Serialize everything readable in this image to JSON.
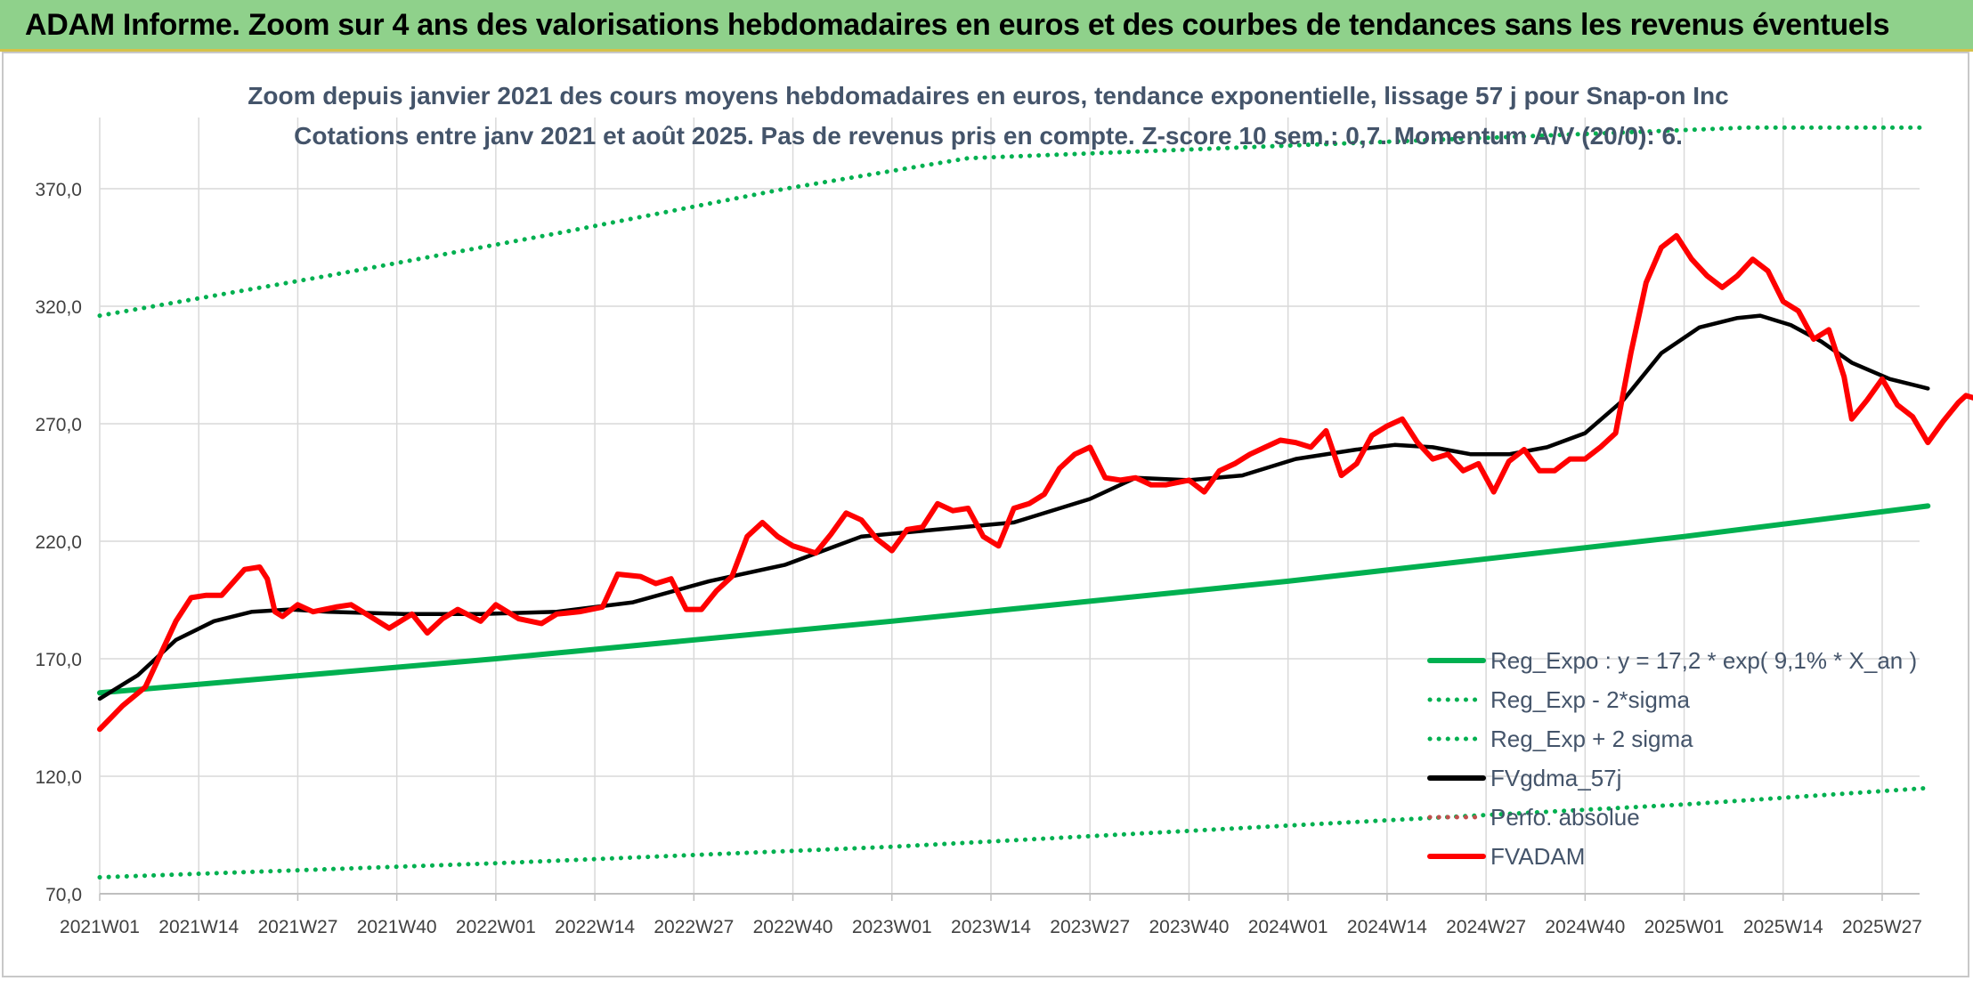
{
  "banner": {
    "title": "ADAM Informe. Zoom sur 4 ans des valorisations hebdomadaires en euros et des courbes de tendances sans les revenus éventuels"
  },
  "colors": {
    "banner_bg": "#8fd18b",
    "reg_expo": "#00b050",
    "fvgdma": "#000000",
    "fvadam": "#ff0000",
    "perfo": "#c0504d",
    "grid": "#d9d9d9"
  },
  "chart_data": {
    "type": "line",
    "title": "Zoom depuis janvier 2021 des cours moyens hebdomadaires en euros, tendance exponentielle, lissage 57 j pour Snap-on Inc",
    "subtitle": "Cotations entre janv 2021 et août 2025. Pas de revenus pris en compte. Z-score 10 sem.: 0,7. Momentum A/V (20/0): 6.",
    "xlabel": "",
    "ylabel": "",
    "ylim": [
      70,
      390
    ],
    "yticks": [
      "70,0",
      "120,0",
      "170,0",
      "220,0",
      "270,0",
      "320,0",
      "370,0"
    ],
    "xtick_labels": [
      "2021W01",
      "2021W14",
      "2021W27",
      "2021W40",
      "2022W01",
      "2022W14",
      "2022W27",
      "2022W40",
      "2023W01",
      "2023W14",
      "2023W27",
      "2023W40",
      "2024W01",
      "2024W14",
      "2024W27",
      "2024W40",
      "2025W01",
      "2025W14",
      "2025W27"
    ],
    "x_range_weeks": [
      0,
      240
    ],
    "grid": true,
    "legend_position": "bottom-right",
    "series": [
      {
        "name": "Reg_Expo : y = 17,2 * exp( 9,1% *  X_an )",
        "style": "solid",
        "color": "#00b050",
        "points": [
          [
            0,
            155.5
          ],
          [
            52,
            170
          ],
          [
            104,
            186
          ],
          [
            156,
            203
          ],
          [
            208,
            222
          ],
          [
            240,
            235
          ]
        ]
      },
      {
        "name": "Reg_Exp - 2*sigma",
        "style": "dotted",
        "color": "#00b050",
        "points": [
          [
            0,
            77
          ],
          [
            52,
            83
          ],
          [
            104,
            90
          ],
          [
            156,
            99
          ],
          [
            208,
            108
          ],
          [
            240,
            115
          ]
        ]
      },
      {
        "name": "Reg_Exp + 2 sigma",
        "style": "dotted",
        "color": "#00b050",
        "points": [
          [
            0,
            316
          ],
          [
            30,
            333
          ],
          [
            60,
            351
          ],
          [
            90,
            370
          ],
          [
            114,
            383
          ],
          [
            216,
            396
          ],
          [
            240,
            396
          ]
        ]
      },
      {
        "name": "FVgdma_57j",
        "style": "solid",
        "color": "#000000",
        "points": [
          [
            0,
            153
          ],
          [
            5,
            163
          ],
          [
            10,
            178
          ],
          [
            15,
            186
          ],
          [
            20,
            190
          ],
          [
            25,
            191
          ],
          [
            30,
            190
          ],
          [
            40,
            189
          ],
          [
            50,
            189
          ],
          [
            60,
            190
          ],
          [
            70,
            194
          ],
          [
            80,
            203
          ],
          [
            90,
            210
          ],
          [
            100,
            222
          ],
          [
            110,
            225
          ],
          [
            120,
            228
          ],
          [
            130,
            238
          ],
          [
            136,
            247
          ],
          [
            143,
            246
          ],
          [
            150,
            248
          ],
          [
            157,
            255
          ],
          [
            165,
            259
          ],
          [
            170,
            261
          ],
          [
            175,
            260
          ],
          [
            180,
            257
          ],
          [
            185,
            257
          ],
          [
            190,
            260
          ],
          [
            195,
            266
          ],
          [
            200,
            280
          ],
          [
            205,
            300
          ],
          [
            210,
            311
          ],
          [
            215,
            315
          ],
          [
            218,
            316
          ],
          [
            222,
            312
          ],
          [
            226,
            305
          ],
          [
            230,
            296
          ],
          [
            235,
            289
          ],
          [
            240,
            285
          ]
        ]
      },
      {
        "name": "Perfo. absolue",
        "style": "dotted",
        "color": "#c0504d",
        "points": []
      },
      {
        "name": "FVADAM",
        "style": "solid",
        "color": "#ff0000",
        "points": [
          [
            0,
            140
          ],
          [
            3,
            150
          ],
          [
            6,
            158
          ],
          [
            8,
            172
          ],
          [
            10,
            186
          ],
          [
            12,
            196
          ],
          [
            14,
            197
          ],
          [
            16,
            197
          ],
          [
            19,
            208
          ],
          [
            21,
            209
          ],
          [
            22,
            204
          ],
          [
            23,
            190
          ],
          [
            24,
            188
          ],
          [
            26,
            193
          ],
          [
            28,
            190
          ],
          [
            31,
            192
          ],
          [
            33,
            193
          ],
          [
            36,
            187
          ],
          [
            38,
            183
          ],
          [
            41,
            189
          ],
          [
            43,
            181
          ],
          [
            45,
            187
          ],
          [
            47,
            191
          ],
          [
            50,
            186
          ],
          [
            52,
            193
          ],
          [
            55,
            187
          ],
          [
            58,
            185
          ],
          [
            60,
            189
          ],
          [
            63,
            190
          ],
          [
            66,
            192
          ],
          [
            68,
            206
          ],
          [
            71,
            205
          ],
          [
            73,
            202
          ],
          [
            75,
            204
          ],
          [
            77,
            191
          ],
          [
            79,
            191
          ],
          [
            81,
            199
          ],
          [
            83,
            205
          ],
          [
            85,
            222
          ],
          [
            87,
            228
          ],
          [
            89,
            222
          ],
          [
            91,
            218
          ],
          [
            94,
            215
          ],
          [
            96,
            223
          ],
          [
            98,
            232
          ],
          [
            100,
            229
          ],
          [
            102,
            221
          ],
          [
            104,
            216
          ],
          [
            106,
            225
          ],
          [
            108,
            226
          ],
          [
            110,
            236
          ],
          [
            112,
            233
          ],
          [
            114,
            234
          ],
          [
            116,
            222
          ],
          [
            118,
            218
          ],
          [
            120,
            234
          ],
          [
            122,
            236
          ],
          [
            124,
            240
          ],
          [
            126,
            251
          ],
          [
            128,
            257
          ],
          [
            130,
            260
          ],
          [
            132,
            247
          ],
          [
            134,
            246
          ],
          [
            136,
            247
          ],
          [
            138,
            244
          ],
          [
            140,
            244
          ],
          [
            143,
            246
          ],
          [
            145,
            241
          ],
          [
            147,
            250
          ],
          [
            149,
            253
          ],
          [
            151,
            257
          ],
          [
            153,
            260
          ],
          [
            155,
            263
          ],
          [
            157,
            262
          ],
          [
            159,
            260
          ],
          [
            161,
            267
          ],
          [
            163,
            248
          ],
          [
            165,
            253
          ],
          [
            167,
            265
          ],
          [
            169,
            269
          ],
          [
            171,
            272
          ],
          [
            173,
            262
          ],
          [
            175,
            255
          ],
          [
            177,
            257
          ],
          [
            179,
            250
          ],
          [
            181,
            253
          ],
          [
            183,
            241
          ],
          [
            185,
            254
          ],
          [
            187,
            259
          ],
          [
            189,
            250
          ],
          [
            191,
            250
          ],
          [
            193,
            255
          ],
          [
            195,
            255
          ],
          [
            197,
            260
          ],
          [
            199,
            266
          ],
          [
            201,
            300
          ],
          [
            203,
            330
          ],
          [
            205,
            345
          ],
          [
            207,
            350
          ],
          [
            209,
            340
          ],
          [
            211,
            333
          ],
          [
            213,
            328
          ],
          [
            215,
            333
          ],
          [
            217,
            340
          ],
          [
            219,
            335
          ],
          [
            221,
            322
          ],
          [
            223,
            318
          ],
          [
            225,
            306
          ],
          [
            227,
            310
          ],
          [
            228,
            300
          ],
          [
            229,
            290
          ],
          [
            230,
            272
          ],
          [
            232,
            280
          ],
          [
            234,
            289
          ],
          [
            236,
            278
          ],
          [
            238,
            273
          ],
          [
            240,
            262
          ],
          [
            242,
            271
          ],
          [
            244,
            279
          ],
          [
            245,
            282
          ],
          [
            246,
            281
          ]
        ]
      }
    ]
  }
}
